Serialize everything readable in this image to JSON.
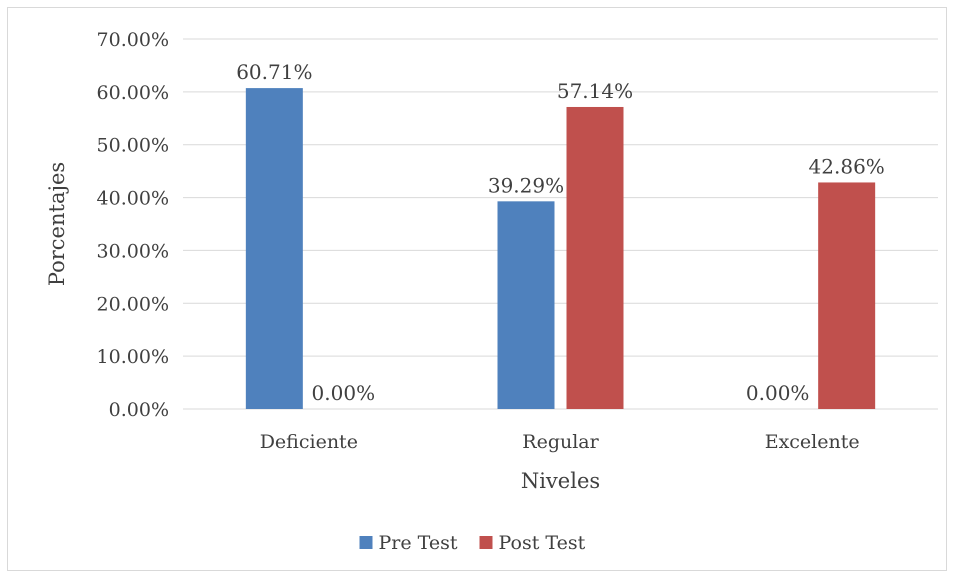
{
  "chart_data": {
    "type": "bar",
    "title": "",
    "xlabel": "Niveles",
    "ylabel": "Porcentajes",
    "categories": [
      "Deficiente",
      "Regular",
      "Excelente"
    ],
    "series": [
      {
        "name": "Pre Test",
        "color": "#4f81bd",
        "values": [
          60.71,
          39.29,
          0.0
        ],
        "labels": [
          "60.71%",
          "39.29%",
          "0.00%"
        ]
      },
      {
        "name": "Post Test",
        "color": "#c0504d",
        "values": [
          0.0,
          57.14,
          42.86
        ],
        "labels": [
          "0.00%",
          "57.14%",
          "42.86%"
        ]
      }
    ],
    "ylim": [
      0,
      70
    ],
    "yticks": [
      0,
      10,
      20,
      30,
      40,
      50,
      60,
      70
    ],
    "ytick_labels": [
      "0.00%",
      "10.00%",
      "20.00%",
      "30.00%",
      "40.00%",
      "50.00%",
      "60.00%",
      "70.00%"
    ],
    "grid": true,
    "legend": "bottom"
  }
}
